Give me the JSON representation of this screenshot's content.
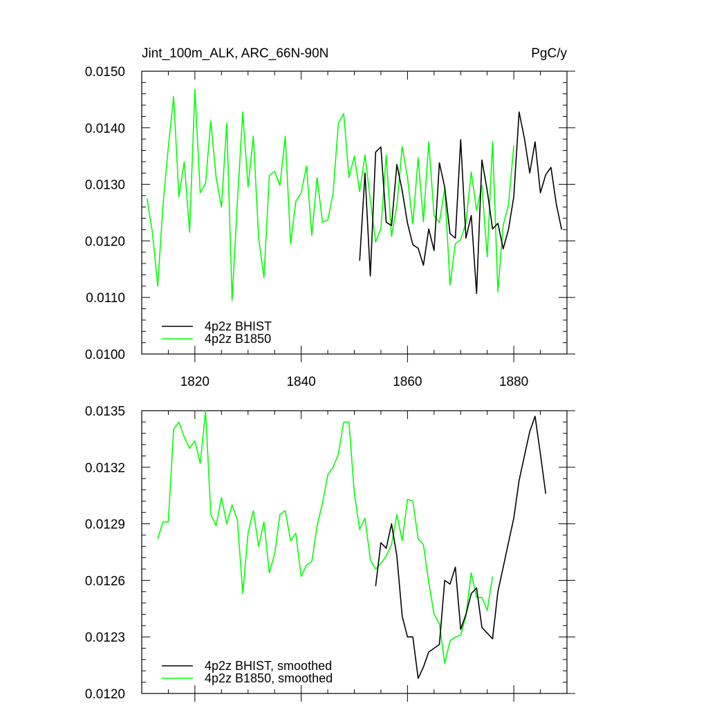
{
  "chart_data": [
    {
      "type": "line",
      "title": "Jint_100m_ALK, ARC_66N-90N",
      "units": "PgC/y",
      "xlim": [
        1810,
        1890
      ],
      "ylim": [
        0.01,
        0.015
      ],
      "xticks": [
        1820,
        1840,
        1860,
        1880
      ],
      "xtick_labels": [
        "1820",
        "1840",
        "1860",
        "1880"
      ],
      "yticks": [
        0.01,
        0.011,
        0.012,
        0.013,
        0.014,
        0.015
      ],
      "ytick_labels": [
        "0.0100",
        "0.0110",
        "0.0120",
        "0.0130",
        "0.0140",
        "0.0150"
      ],
      "legend_position": "lower-left",
      "series": [
        {
          "name": "4p2z BHIST",
          "color": "#000000",
          "x": [
            1851,
            1852,
            1853,
            1854,
            1855,
            1856,
            1857,
            1858,
            1859,
            1860,
            1861,
            1862,
            1863,
            1864,
            1865,
            1866,
            1867,
            1868,
            1869,
            1870,
            1871,
            1872,
            1873,
            1874,
            1875,
            1876,
            1877,
            1878,
            1879,
            1880,
            1881,
            1882,
            1883,
            1884,
            1885,
            1886,
            1887,
            1888,
            1889
          ],
          "y": [
            0.01165,
            0.0132,
            0.01138,
            0.01357,
            0.01366,
            0.01233,
            0.01227,
            0.01335,
            0.01289,
            0.01231,
            0.01193,
            0.01187,
            0.01157,
            0.01221,
            0.01183,
            0.01338,
            0.01295,
            0.01213,
            0.01205,
            0.01379,
            0.01205,
            0.01245,
            0.01107,
            0.01343,
            0.01289,
            0.01221,
            0.01231,
            0.01186,
            0.0122,
            0.01278,
            0.01428,
            0.01381,
            0.0132,
            0.01375,
            0.01285,
            0.01317,
            0.0133,
            0.01265,
            0.0122
          ]
        },
        {
          "name": "4p2z B1850",
          "color": "#00ff00",
          "x": [
            1811,
            1812,
            1813,
            1814,
            1815,
            1816,
            1817,
            1818,
            1819,
            1820,
            1821,
            1822,
            1823,
            1824,
            1825,
            1826,
            1827,
            1828,
            1829,
            1830,
            1831,
            1832,
            1833,
            1834,
            1835,
            1836,
            1837,
            1838,
            1839,
            1840,
            1841,
            1842,
            1843,
            1844,
            1845,
            1846,
            1847,
            1848,
            1849,
            1850,
            1851,
            1852,
            1853,
            1854,
            1855,
            1856,
            1857,
            1858,
            1859,
            1860,
            1861,
            1862,
            1863,
            1864,
            1865,
            1866,
            1867,
            1868,
            1869,
            1870,
            1871,
            1872,
            1873,
            1874,
            1875,
            1876,
            1877,
            1878,
            1879,
            1880
          ],
          "y": [
            0.01275,
            0.01215,
            0.0112,
            0.01265,
            0.01365,
            0.01455,
            0.01278,
            0.0134,
            0.01215,
            0.01468,
            0.01285,
            0.01302,
            0.01412,
            0.01312,
            0.0126,
            0.01408,
            0.01095,
            0.0127,
            0.01428,
            0.01295,
            0.01385,
            0.01205,
            0.01135,
            0.01315,
            0.01323,
            0.01298,
            0.01385,
            0.01195,
            0.0127,
            0.01285,
            0.01332,
            0.0121,
            0.01312,
            0.01233,
            0.01237,
            0.01285,
            0.01408,
            0.01425,
            0.01312,
            0.0135,
            0.01287,
            0.01352,
            0.01272,
            0.01198,
            0.01222,
            0.01352,
            0.01208,
            0.01262,
            0.01367,
            0.01312,
            0.0123,
            0.01347,
            0.01234,
            0.01375,
            0.01245,
            0.01232,
            0.01293,
            0.01122,
            0.01195,
            0.01202,
            0.01232,
            0.01322,
            0.01254,
            0.01298,
            0.01172,
            0.01376,
            0.0111,
            0.01228,
            0.01263,
            0.01369
          ]
        }
      ]
    },
    {
      "type": "line",
      "xlim": [
        1810,
        1890
      ],
      "ylim": [
        0.012,
        0.0135
      ],
      "xticks": [
        1820,
        1840,
        1860,
        1880
      ],
      "yticks": [
        0.012,
        0.0123,
        0.0126,
        0.0129,
        0.0132,
        0.0135
      ],
      "ytick_labels": [
        "0.0120",
        "0.0123",
        "0.0126",
        "0.0129",
        "0.0132",
        "0.0135"
      ],
      "legend_position": "lower-left",
      "series": [
        {
          "name": "4p2z BHIST, smoothed",
          "color": "#000000",
          "x": [
            1854,
            1855,
            1856,
            1857,
            1858,
            1859,
            1860,
            1861,
            1862,
            1863,
            1864,
            1865,
            1866,
            1867,
            1868,
            1869,
            1870,
            1871,
            1872,
            1873,
            1874,
            1875,
            1876,
            1877,
            1878,
            1879,
            1880,
            1881,
            1882,
            1883,
            1884,
            1885,
            1886
          ],
          "y": [
            0.01257,
            0.0128,
            0.01277,
            0.0129,
            0.01273,
            0.01241,
            0.0123,
            0.0123,
            0.01208,
            0.01214,
            0.01222,
            0.01224,
            0.01226,
            0.0126,
            0.01258,
            0.01267,
            0.01234,
            0.01242,
            0.01253,
            0.01256,
            0.01235,
            0.01232,
            0.01229,
            0.01254,
            0.01267,
            0.0128,
            0.01293,
            0.01313,
            0.01326,
            0.01339,
            0.01347,
            0.01327,
            0.01306
          ]
        },
        {
          "name": "4p2z B1850, smoothed",
          "color": "#00ff00",
          "x": [
            1813,
            1814,
            1815,
            1816,
            1817,
            1818,
            1819,
            1820,
            1821,
            1822,
            1823,
            1824,
            1825,
            1826,
            1827,
            1828,
            1829,
            1830,
            1831,
            1832,
            1833,
            1834,
            1835,
            1836,
            1837,
            1838,
            1839,
            1840,
            1841,
            1842,
            1843,
            1844,
            1845,
            1846,
            1847,
            1848,
            1849,
            1850,
            1851,
            1852,
            1853,
            1854,
            1855,
            1856,
            1857,
            1858,
            1859,
            1860,
            1861,
            1862,
            1863,
            1864,
            1865,
            1866,
            1867,
            1868,
            1869,
            1870,
            1871,
            1872,
            1873,
            1874,
            1875,
            1876
          ],
          "y": [
            0.01282,
            0.01291,
            0.01291,
            0.0134,
            0.01344,
            0.01336,
            0.0133,
            0.01334,
            0.01322,
            0.0135,
            0.01295,
            0.01289,
            0.01304,
            0.0129,
            0.013,
            0.01292,
            0.01253,
            0.01285,
            0.01297,
            0.01278,
            0.01291,
            0.01264,
            0.01274,
            0.01295,
            0.01297,
            0.01281,
            0.01285,
            0.01262,
            0.01268,
            0.0127,
            0.01289,
            0.01301,
            0.01316,
            0.0132,
            0.01327,
            0.01344,
            0.01344,
            0.01306,
            0.01287,
            0.01293,
            0.01271,
            0.01266,
            0.01269,
            0.01273,
            0.01279,
            0.01295,
            0.01281,
            0.01303,
            0.01302,
            0.01282,
            0.01279,
            0.01259,
            0.01242,
            0.01237,
            0.01216,
            0.01228,
            0.0123,
            0.01231,
            0.01241,
            0.01264,
            0.01251,
            0.01251,
            0.01244,
            0.01262
          ]
        }
      ]
    }
  ]
}
